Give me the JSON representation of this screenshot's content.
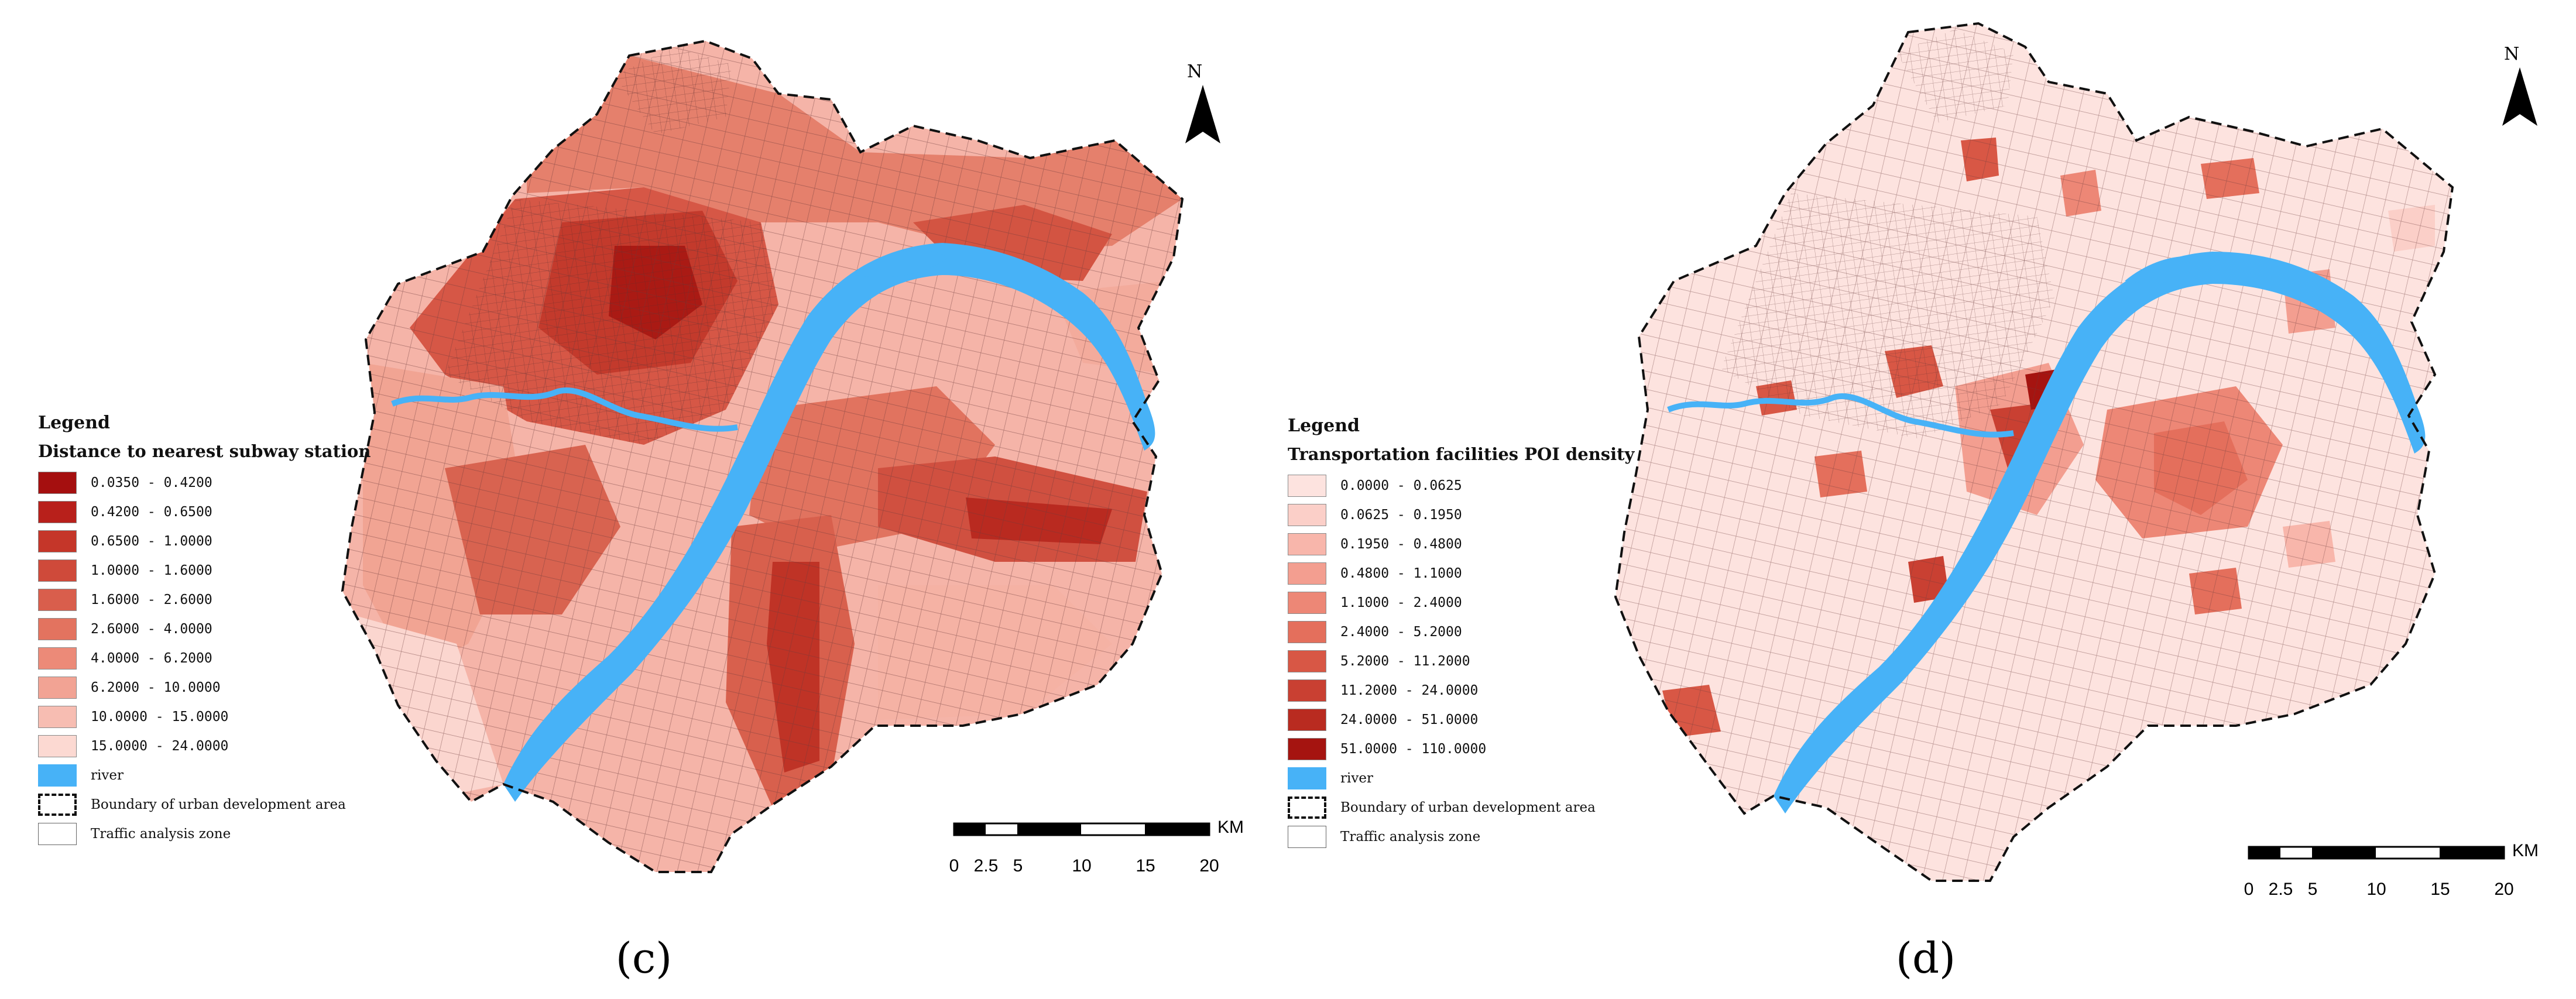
{
  "panels": [
    {
      "id": "c",
      "panel_label": "(c)",
      "legend_title": "Legend",
      "legend_subtitle": "Distance to nearest subway station",
      "classes": [
        {
          "label": "0.0350 - 0.4200",
          "color": "#a50f0f"
        },
        {
          "label": "0.4200 - 0.6500",
          "color": "#b8201b"
        },
        {
          "label": "0.6500 - 1.0000",
          "color": "#c53629"
        },
        {
          "label": "1.0000 - 1.6000",
          "color": "#cf4a3a"
        },
        {
          "label": "1.6000 - 2.6000",
          "color": "#d95e4c"
        },
        {
          "label": "2.6000 - 4.0000",
          "color": "#e3735f"
        },
        {
          "label": "4.0000 - 6.2000",
          "color": "#ec8a78"
        },
        {
          "label": "6.2000 - 10.0000",
          "color": "#f2a394"
        },
        {
          "label": "10.0000 - 15.0000",
          "color": "#f7bdb2"
        },
        {
          "label": "15.0000 - 24.0000",
          "color": "#fcd9d2"
        }
      ],
      "river_label": "river",
      "boundary_label": "Boundary of urban development area",
      "zone_label": "Traffic analysis zone",
      "north_label": "N",
      "scale_ticks": [
        "0",
        "2.5",
        "5",
        "10",
        "15",
        "20"
      ],
      "scale_unit": "KM"
    },
    {
      "id": "d",
      "panel_label": "(d)",
      "legend_title": "Legend",
      "legend_subtitle": "Transportation facilities POI density",
      "classes": [
        {
          "label": "0.0000 - 0.0625",
          "color": "#fde3df"
        },
        {
          "label": "0.0625 - 0.1950",
          "color": "#fbcfc8"
        },
        {
          "label": "0.1950 - 0.4800",
          "color": "#f8b6ab"
        },
        {
          "label": "0.4800 - 1.1000",
          "color": "#f39e90"
        },
        {
          "label": "1.1000 - 2.4000",
          "color": "#ed8776"
        },
        {
          "label": "2.4000 - 5.2000",
          "color": "#e46f5c"
        },
        {
          "label": "5.2000 - 11.2000",
          "color": "#d85745"
        },
        {
          "label": "11.2000 - 24.0000",
          "color": "#c94032"
        },
        {
          "label": "24.0000 - 51.0000",
          "color": "#b92b20"
        },
        {
          "label": "51.0000 - 110.0000",
          "color": "#a51410"
        }
      ],
      "river_label": "river",
      "boundary_label": "Boundary of urban development area",
      "zone_label": "Traffic analysis zone",
      "north_label": "N",
      "scale_ticks": [
        "0",
        "2.5",
        "5",
        "10",
        "15",
        "20"
      ],
      "scale_unit": "KM"
    }
  ],
  "colors": {
    "river": "#47b2f7",
    "boundary": "#111111",
    "zone_line": "#5a3a3a"
  }
}
